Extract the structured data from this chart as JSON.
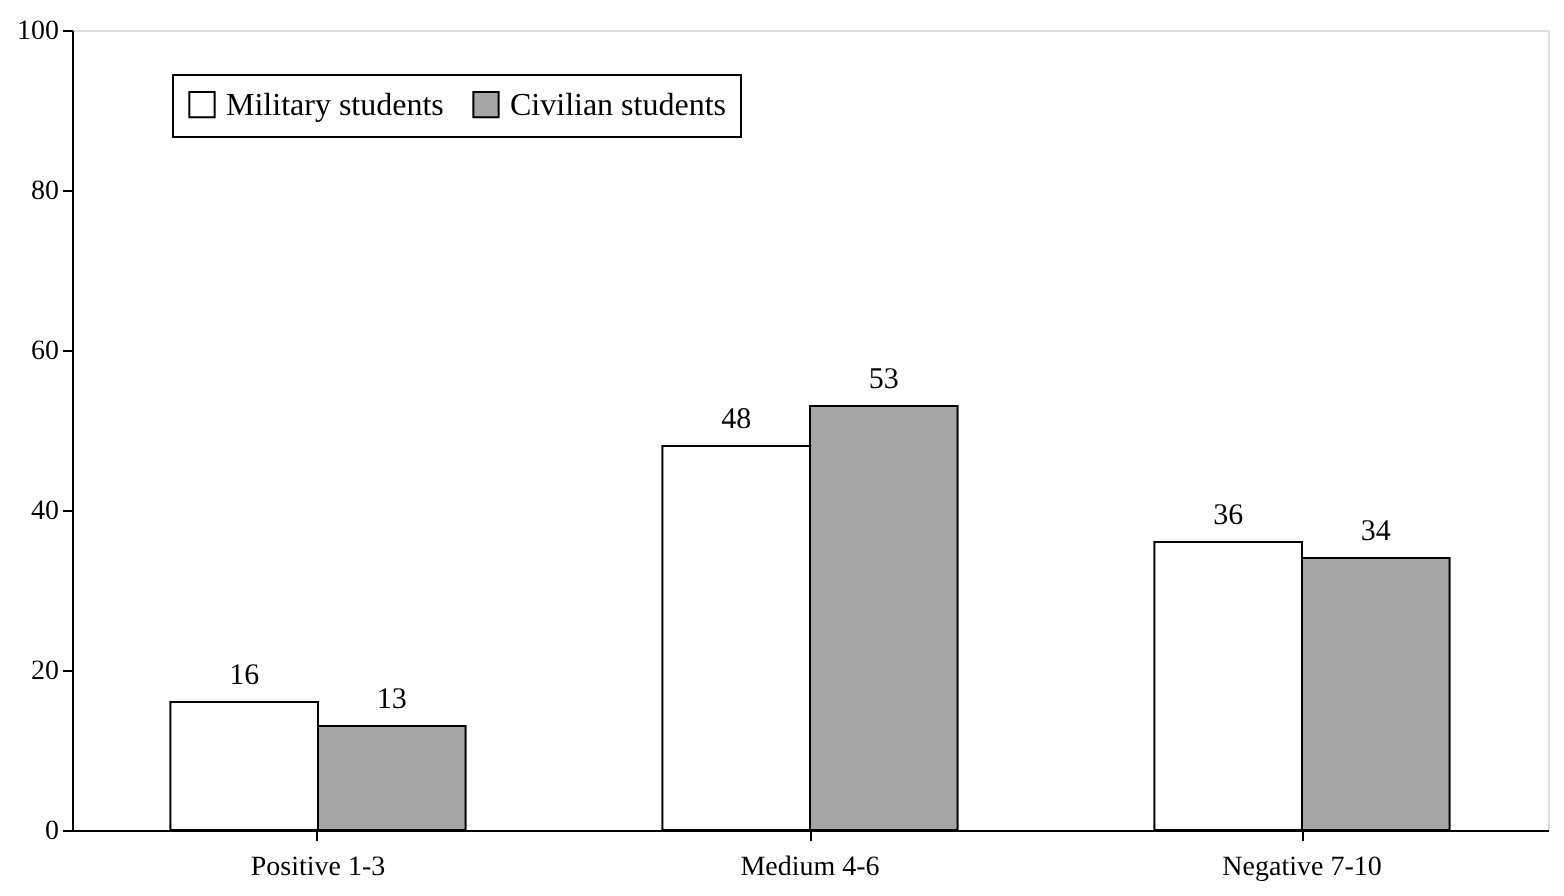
{
  "chart_data": {
    "type": "bar",
    "categories": [
      "Positive 1-3",
      "Medium 4-6",
      "Negative 7-10"
    ],
    "series": [
      {
        "name": "Military students",
        "color": "#ffffff",
        "values": [
          16,
          48,
          36
        ]
      },
      {
        "name": "Civilian students",
        "color": "#a6a6a6",
        "values": [
          13,
          53,
          34
        ]
      }
    ],
    "ylim": [
      0,
      100
    ],
    "yticks": [
      0,
      20,
      40,
      60,
      80,
      100
    ],
    "grid": false,
    "legend": "top",
    "data_labels": true
  }
}
